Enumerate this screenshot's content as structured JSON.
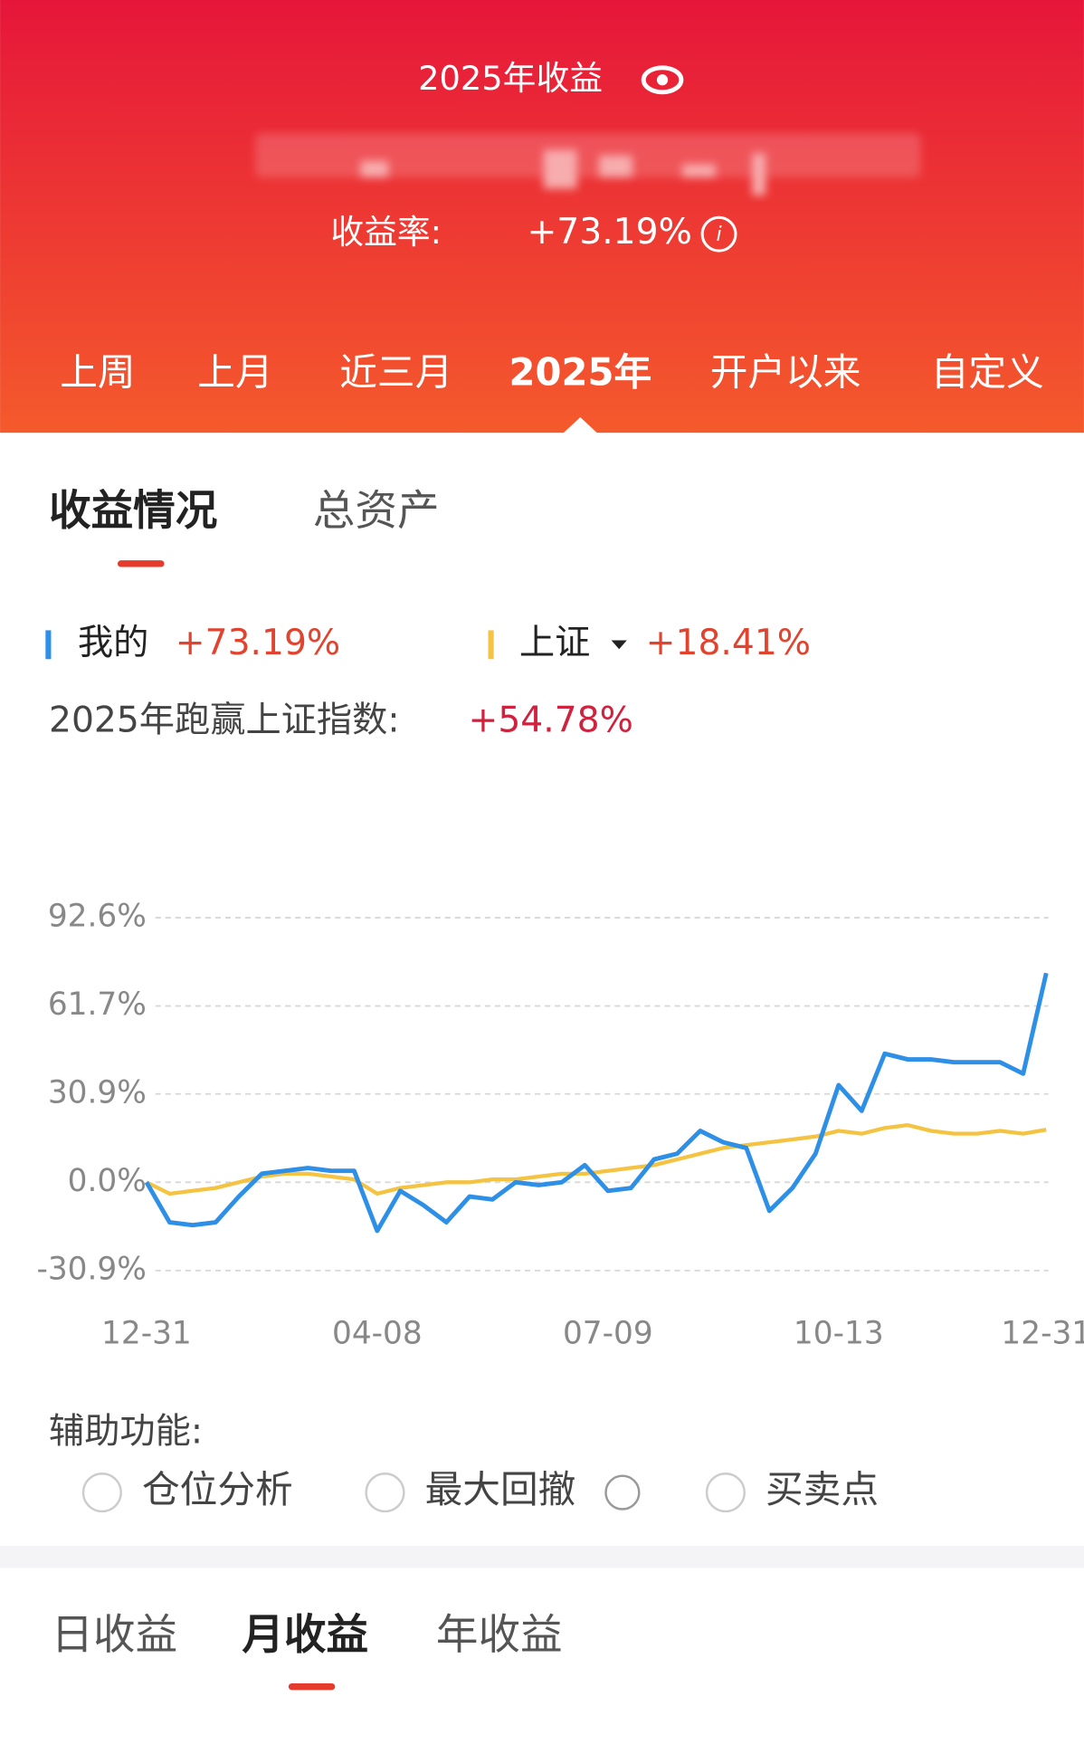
{
  "header": {
    "title": "2025年收益",
    "rate_label": "收益率:",
    "rate": "+73.19%"
  },
  "period_tabs": [
    "上周",
    "上月",
    "近三月",
    "2025年",
    "开户以来",
    "自定义"
  ],
  "section_tabs": [
    "收益情况",
    "总资产"
  ],
  "comparison": {
    "label": "2025年跑赢上证指数:",
    "value": "+54.78%"
  },
  "chart_data": {
    "type": "line",
    "x": [
      "12-31",
      null,
      null,
      null,
      null,
      null,
      null,
      null,
      null,
      null,
      "04-08",
      null,
      null,
      null,
      null,
      null,
      null,
      null,
      null,
      null,
      "07-09",
      null,
      null,
      null,
      null,
      null,
      null,
      null,
      null,
      null,
      "10-13",
      null,
      null,
      null,
      null,
      null,
      null,
      null,
      null,
      "12-31"
    ],
    "series": [
      {
        "name": "我的",
        "legend_value": "+73.19%",
        "color": "#2d8fe6",
        "values": [
          0,
          -14,
          -15,
          -14,
          -5,
          3,
          4,
          5,
          4,
          4,
          -17,
          -3,
          -8,
          -14,
          -5,
          -6,
          0,
          -1,
          0,
          6,
          -3,
          -2,
          8,
          10,
          18,
          14,
          12,
          -10,
          -2,
          10,
          34,
          25,
          45,
          43,
          43,
          42,
          42,
          42,
          38,
          73.19
        ]
      },
      {
        "name": "上证",
        "legend_value": "+18.41%",
        "color": "#f5c342",
        "values": [
          0,
          -4,
          -3,
          -2,
          0,
          2,
          3,
          3,
          2,
          1,
          -4,
          -2,
          -1,
          0,
          0,
          1,
          1,
          2,
          3,
          3,
          4,
          5,
          6,
          8,
          10,
          12,
          13,
          14,
          15,
          16,
          18,
          17,
          19,
          20,
          18,
          17,
          17,
          18,
          17,
          18.41
        ]
      }
    ],
    "ylim": [
      -30.9,
      92.6
    ],
    "yticks": [
      {
        "value": -30.9,
        "label": "-30.9%"
      },
      {
        "value": 0,
        "label": "0.0%"
      },
      {
        "value": 30.9,
        "label": "30.9%"
      },
      {
        "value": 61.7,
        "label": "61.7%"
      },
      {
        "value": 92.6,
        "label": "92.6%"
      }
    ],
    "grid": true
  },
  "aux": {
    "label": "辅助功能:",
    "options": [
      "仓位分析",
      "最大回撤",
      "买卖点"
    ]
  },
  "bottom_tabs": [
    "日收益",
    "月收益",
    "年收益"
  ]
}
